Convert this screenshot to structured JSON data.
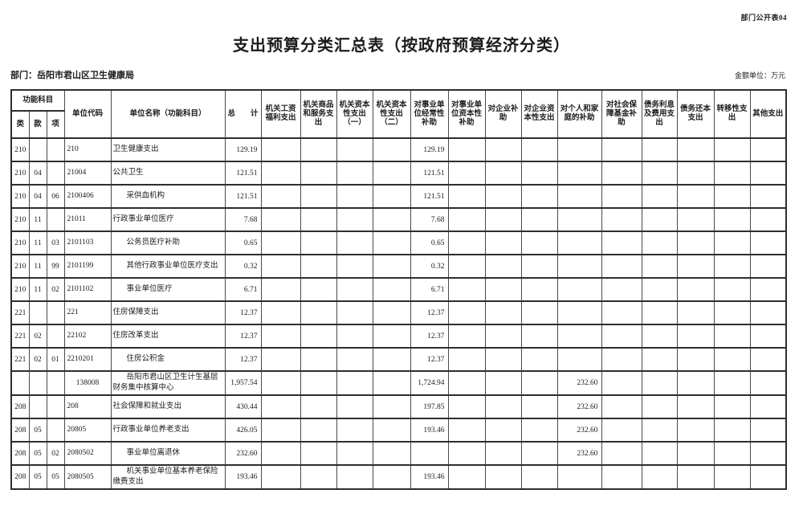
{
  "page": {
    "doc_label": "部门公开表04",
    "title": "支出预算分类汇总表（按政府预算经济分类）",
    "department_label": "部门：岳阳市君山区卫生健康局",
    "unit_label": "金额单位：万元"
  },
  "table": {
    "header": {
      "func_group": "功能科目",
      "func_cols": [
        "类",
        "款",
        "项"
      ],
      "unit_code": "单位代码",
      "unit_name": "单位名称（功能科目）",
      "total": "总　　计",
      "measures": [
        "机关工资福利支出",
        "机关商品和服务支出",
        "机关资本性支出（一）",
        "机关资本性支出（二）",
        "对事业单位经常性补助",
        "对事业单位资本性补助",
        "对企业补助",
        "对企业资本性支出",
        "对个人和家庭的补助",
        "对社会保障基金补助",
        "债务利息及费用支出",
        "债务还本支出",
        "转移性支出",
        "其他支出"
      ]
    },
    "rows": [
      {
        "lei": "210",
        "kuan": "",
        "xiang": "",
        "code": "210",
        "code_center": false,
        "name": "卫生健康支出",
        "indent": false,
        "total": "129.19",
        "values": [
          "",
          "",
          "",
          "",
          "129.19",
          "",
          "",
          "",
          "",
          "",
          "",
          "",
          "",
          ""
        ]
      },
      {
        "lei": "210",
        "kuan": "04",
        "xiang": "",
        "code": "21004",
        "code_center": false,
        "name": "公共卫生",
        "indent": false,
        "total": "121.51",
        "values": [
          "",
          "",
          "",
          "",
          "121.51",
          "",
          "",
          "",
          "",
          "",
          "",
          "",
          "",
          ""
        ]
      },
      {
        "lei": "210",
        "kuan": "04",
        "xiang": "06",
        "code": "2100406",
        "code_center": false,
        "name": "采供血机构",
        "indent": true,
        "total": "121.51",
        "values": [
          "",
          "",
          "",
          "",
          "121.51",
          "",
          "",
          "",
          "",
          "",
          "",
          "",
          "",
          ""
        ]
      },
      {
        "lei": "210",
        "kuan": "11",
        "xiang": "",
        "code": "21011",
        "code_center": false,
        "name": "行政事业单位医疗",
        "indent": false,
        "total": "7.68",
        "values": [
          "",
          "",
          "",
          "",
          "7.68",
          "",
          "",
          "",
          "",
          "",
          "",
          "",
          "",
          ""
        ]
      },
      {
        "lei": "210",
        "kuan": "11",
        "xiang": "03",
        "code": "2101103",
        "code_center": false,
        "name": "公务员医疗补助",
        "indent": true,
        "total": "0.65",
        "values": [
          "",
          "",
          "",
          "",
          "0.65",
          "",
          "",
          "",
          "",
          "",
          "",
          "",
          "",
          ""
        ]
      },
      {
        "lei": "210",
        "kuan": "11",
        "xiang": "99",
        "code": "2101199",
        "code_center": false,
        "name": "其他行政事业单位医疗支出",
        "indent": true,
        "total": "0.32",
        "values": [
          "",
          "",
          "",
          "",
          "0.32",
          "",
          "",
          "",
          "",
          "",
          "",
          "",
          "",
          ""
        ]
      },
      {
        "lei": "210",
        "kuan": "11",
        "xiang": "02",
        "code": "2101102",
        "code_center": false,
        "name": "事业单位医疗",
        "indent": true,
        "total": "6.71",
        "values": [
          "",
          "",
          "",
          "",
          "6.71",
          "",
          "",
          "",
          "",
          "",
          "",
          "",
          "",
          ""
        ]
      },
      {
        "lei": "221",
        "kuan": "",
        "xiang": "",
        "code": "221",
        "code_center": false,
        "name": "住房保障支出",
        "indent": false,
        "total": "12.37",
        "values": [
          "",
          "",
          "",
          "",
          "12.37",
          "",
          "",
          "",
          "",
          "",
          "",
          "",
          "",
          ""
        ]
      },
      {
        "lei": "221",
        "kuan": "02",
        "xiang": "",
        "code": "22102",
        "code_center": false,
        "name": "住房改革支出",
        "indent": false,
        "total": "12.37",
        "values": [
          "",
          "",
          "",
          "",
          "12.37",
          "",
          "",
          "",
          "",
          "",
          "",
          "",
          "",
          ""
        ]
      },
      {
        "lei": "221",
        "kuan": "02",
        "xiang": "01",
        "code": "2210201",
        "code_center": false,
        "name": "住房公积金",
        "indent": true,
        "total": "12.37",
        "values": [
          "",
          "",
          "",
          "",
          "12.37",
          "",
          "",
          "",
          "",
          "",
          "",
          "",
          "",
          ""
        ]
      },
      {
        "lei": "",
        "kuan": "",
        "xiang": "",
        "code": "138008",
        "code_center": true,
        "name": "岳阳市君山区卫生计生基层财务集中核算中心",
        "indent": true,
        "total": "1,957.54",
        "values": [
          "",
          "",
          "",
          "",
          "1,724.94",
          "",
          "",
          "",
          "232.60",
          "",
          "",
          "",
          "",
          ""
        ]
      },
      {
        "lei": "208",
        "kuan": "",
        "xiang": "",
        "code": "208",
        "code_center": false,
        "name": "社会保障和就业支出",
        "indent": false,
        "total": "430.44",
        "values": [
          "",
          "",
          "",
          "",
          "197.85",
          "",
          "",
          "",
          "232.60",
          "",
          "",
          "",
          "",
          ""
        ]
      },
      {
        "lei": "208",
        "kuan": "05",
        "xiang": "",
        "code": "20805",
        "code_center": false,
        "name": "行政事业单位养老支出",
        "indent": false,
        "total": "426.05",
        "values": [
          "",
          "",
          "",
          "",
          "193.46",
          "",
          "",
          "",
          "232.60",
          "",
          "",
          "",
          "",
          ""
        ]
      },
      {
        "lei": "208",
        "kuan": "05",
        "xiang": "02",
        "code": "2080502",
        "code_center": false,
        "name": "事业单位离退休",
        "indent": true,
        "total": "232.60",
        "values": [
          "",
          "",
          "",
          "",
          "",
          "",
          "",
          "",
          "232.60",
          "",
          "",
          "",
          "",
          ""
        ]
      },
      {
        "lei": "208",
        "kuan": "05",
        "xiang": "05",
        "code": "2080505",
        "code_center": false,
        "name": "机关事业单位基本养老保险缴费支出",
        "indent": true,
        "total": "193.46",
        "values": [
          "",
          "",
          "",
          "",
          "193.46",
          "",
          "",
          "",
          "",
          "",
          "",
          "",
          "",
          ""
        ]
      }
    ]
  }
}
